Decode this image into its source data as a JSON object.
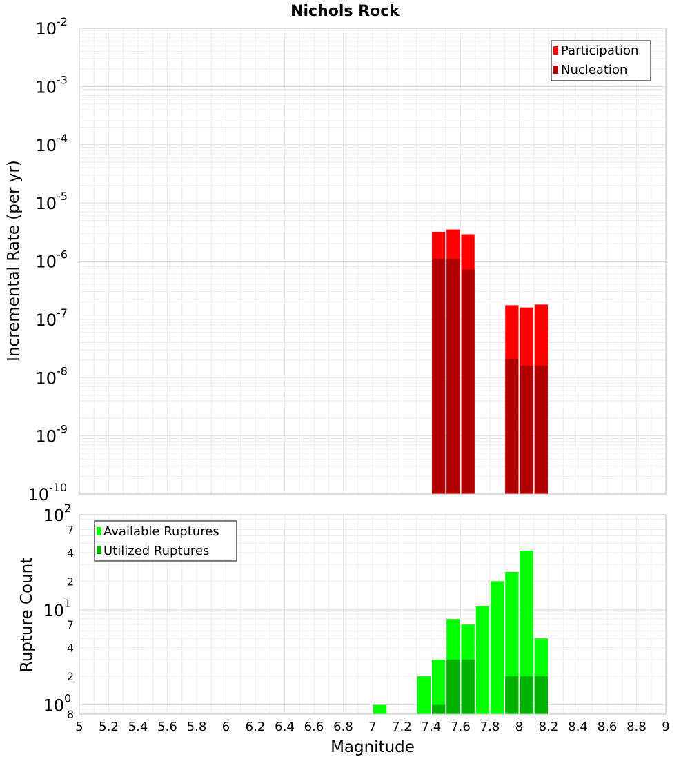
{
  "chart_data": [
    {
      "type": "bar",
      "title": "Nichols Rock",
      "ylabel": "Incremental Rate (per yr)",
      "xlabel": "Magnitude",
      "yscale": "log",
      "ylim": [
        1e-10,
        0.01
      ],
      "xlim": [
        5,
        9
      ],
      "bar_width": 0.1,
      "stacking": "overlay",
      "legend_position": "top-right",
      "ytick_labels": [
        {
          "base": "10",
          "exp": "-10",
          "value": 1e-10
        },
        {
          "base": "10",
          "exp": "-9",
          "value": 1e-09
        },
        {
          "base": "10",
          "exp": "-8",
          "value": 1e-08
        },
        {
          "base": "10",
          "exp": "-7",
          "value": 1e-07
        },
        {
          "base": "10",
          "exp": "-6",
          "value": 1e-06
        },
        {
          "base": "10",
          "exp": "-5",
          "value": 1e-05
        },
        {
          "base": "10",
          "exp": "-4",
          "value": 0.0001
        },
        {
          "base": "10",
          "exp": "-3",
          "value": 0.001
        },
        {
          "base": "10",
          "exp": "-2",
          "value": 0.01
        }
      ],
      "series": [
        {
          "name": "Participation",
          "color": "#ff0000",
          "x": [
            7.45,
            7.55,
            7.65,
            7.95,
            8.05,
            8.15
          ],
          "values": [
            3.2e-06,
            3.5e-06,
            2.9e-06,
            1.75e-07,
            1.6e-07,
            1.8e-07
          ]
        },
        {
          "name": "Nucleation",
          "color": "#b20000",
          "x": [
            7.45,
            7.55,
            7.65,
            7.95,
            8.05,
            8.15
          ],
          "values": [
            1.1e-06,
            1.1e-06,
            7.2e-07,
            2.1e-08,
            1.6e-08,
            1.6e-08
          ]
        }
      ]
    },
    {
      "type": "bar",
      "ylabel": "Rupture Count",
      "xlabel": "Magnitude",
      "yscale": "log",
      "ylim": [
        0.8,
        100
      ],
      "xlim": [
        5,
        9
      ],
      "bar_width": 0.1,
      "stacking": "overlay",
      "legend_position": "top-left",
      "ytick_labels": [
        {
          "base": "8",
          "exp": "",
          "value": 0.8
        },
        {
          "base": "10",
          "exp": "0",
          "value": 1
        },
        {
          "base": "2",
          "exp": "",
          "value": 2
        },
        {
          "base": "4",
          "exp": "",
          "value": 4
        },
        {
          "base": "7",
          "exp": "",
          "value": 7
        },
        {
          "base": "10",
          "exp": "1",
          "value": 10
        },
        {
          "base": "2",
          "exp": "",
          "value": 20
        },
        {
          "base": "4",
          "exp": "",
          "value": 40
        },
        {
          "base": "7",
          "exp": "",
          "value": 70
        },
        {
          "base": "10",
          "exp": "2",
          "value": 100
        }
      ],
      "xticks": [
        "5",
        "5.2",
        "5.4",
        "5.6",
        "5.8",
        "6",
        "6.2",
        "6.4",
        "6.6",
        "6.8",
        "7",
        "7.2",
        "7.4",
        "7.6",
        "7.8",
        "8",
        "8.2",
        "8.4",
        "8.6",
        "8.8",
        "9"
      ],
      "series": [
        {
          "name": "Available Ruptures",
          "color": "#00ff00",
          "x": [
            7.05,
            7.35,
            7.45,
            7.55,
            7.65,
            7.75,
            7.85,
            7.95,
            8.05,
            8.15
          ],
          "values": [
            1,
            2,
            3,
            8,
            7,
            11,
            20,
            25,
            42,
            5
          ]
        },
        {
          "name": "Utilized Ruptures",
          "color": "#00b200",
          "x": [
            7.45,
            7.55,
            7.65,
            7.95,
            8.05,
            8.15
          ],
          "values": [
            1,
            3,
            3,
            2,
            2,
            2
          ]
        }
      ]
    }
  ]
}
